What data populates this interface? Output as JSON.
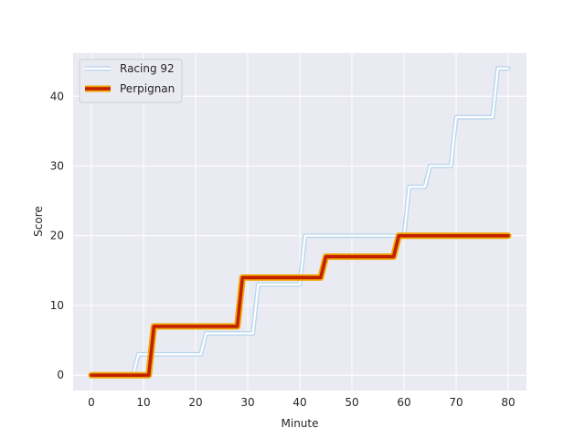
{
  "chart_data": {
    "type": "line",
    "title": "",
    "xlabel": "Minute",
    "ylabel": "Score",
    "xlim": [
      -3.5,
      83.5
    ],
    "ylim": [
      -2.2,
      46.2
    ],
    "x_ticks": [
      0,
      10,
      20,
      30,
      40,
      50,
      60,
      70,
      80
    ],
    "y_ticks": [
      0,
      10,
      20,
      30,
      40
    ],
    "grid": true,
    "legend_position": "top-left",
    "series": [
      {
        "name": "Racing 92",
        "line_color": "#ffffff",
        "glow_color": "#b9d7ee",
        "points": [
          [
            0,
            0
          ],
          [
            8,
            0
          ],
          [
            9,
            3
          ],
          [
            21,
            3
          ],
          [
            22,
            6
          ],
          [
            31,
            6
          ],
          [
            32,
            13
          ],
          [
            40,
            13
          ],
          [
            41,
            20
          ],
          [
            60,
            20
          ],
          [
            61,
            27
          ],
          [
            64,
            27
          ],
          [
            65,
            30
          ],
          [
            69,
            30
          ],
          [
            70,
            37
          ],
          [
            77,
            37
          ],
          [
            78,
            44
          ],
          [
            80,
            44
          ]
        ]
      },
      {
        "name": "Perpignan",
        "line_color": "#c11f00",
        "glow_color": "#f0a500",
        "points": [
          [
            0,
            0
          ],
          [
            11,
            0
          ],
          [
            12,
            7
          ],
          [
            28,
            7
          ],
          [
            29,
            14
          ],
          [
            44,
            14
          ],
          [
            45,
            17
          ],
          [
            58,
            17
          ],
          [
            59,
            20
          ],
          [
            80,
            20
          ]
        ]
      }
    ]
  }
}
